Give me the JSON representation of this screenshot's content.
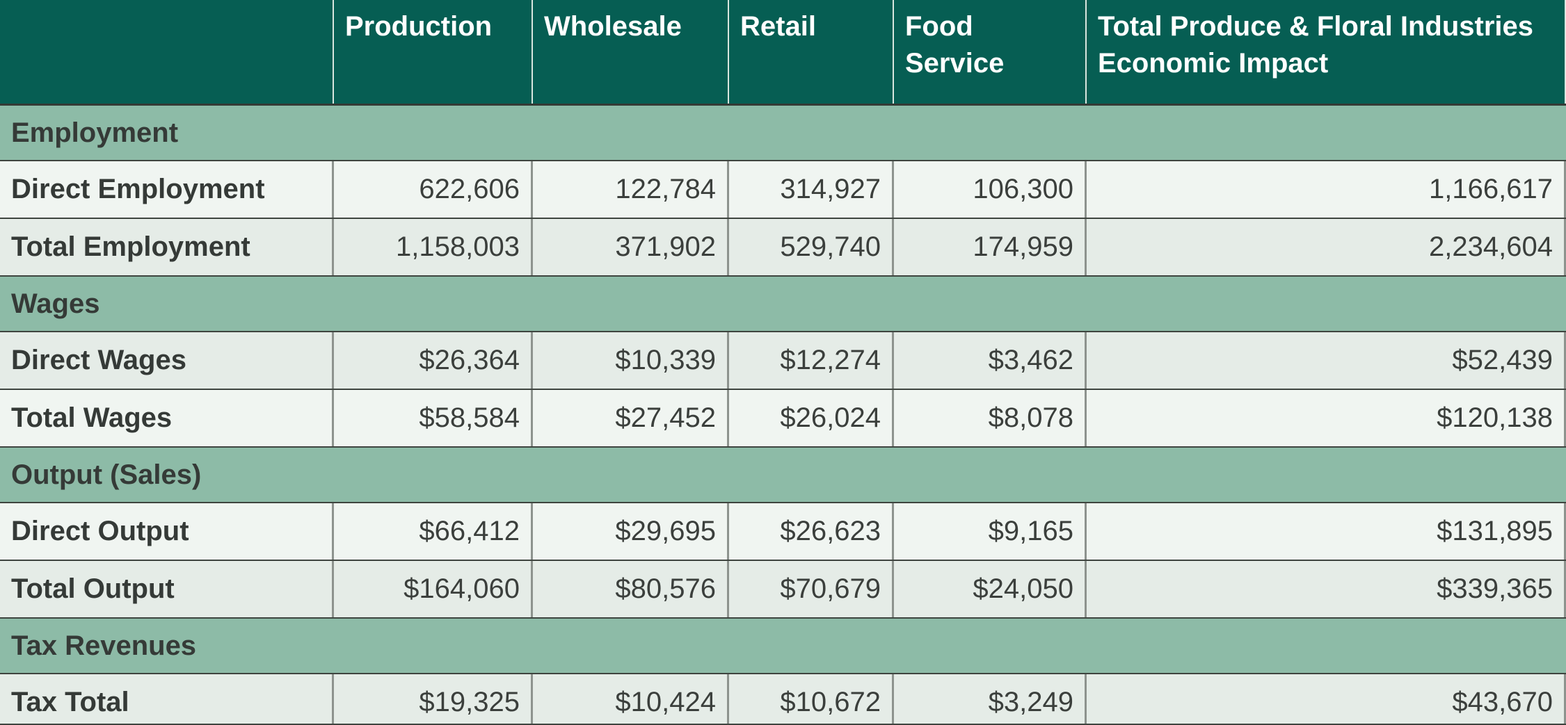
{
  "table": {
    "columns": [
      "",
      "Production",
      "Wholesale",
      "Retail",
      "Food Service",
      "Total Produce & Floral Industries Economic Impact"
    ],
    "sections": [
      {
        "label": "Employment",
        "rows": [
          {
            "label": "Direct Employment",
            "shade": "light",
            "values": [
              "622,606",
              "122,784",
              "314,927",
              "106,300",
              "1,166,617"
            ]
          },
          {
            "label": "Total Employment",
            "shade": "dark",
            "values": [
              "1,158,003",
              "371,902",
              "529,740",
              "174,959",
              "2,234,604"
            ]
          }
        ]
      },
      {
        "label": "Wages",
        "rows": [
          {
            "label": "Direct Wages",
            "shade": "dark",
            "values": [
              "$26,364",
              "$10,339",
              "$12,274",
              "$3,462",
              "$52,439"
            ]
          },
          {
            "label": "Total Wages",
            "shade": "light",
            "values": [
              "$58,584",
              "$27,452",
              "$26,024",
              "$8,078",
              "$120,138"
            ]
          }
        ]
      },
      {
        "label": "Output (Sales)",
        "rows": [
          {
            "label": "Direct Output",
            "shade": "light",
            "values": [
              "$66,412",
              "$29,695",
              "$26,623",
              "$9,165",
              "$131,895"
            ]
          },
          {
            "label": "Total Output",
            "shade": "dark",
            "values": [
              "$164,060",
              "$80,576",
              "$70,679",
              "$24,050",
              "$339,365"
            ]
          }
        ]
      },
      {
        "label": "Tax Revenues",
        "rows": [
          {
            "label": "Tax Total",
            "shade": "dark",
            "values": [
              "$19,325",
              "$10,424",
              "$10,672",
              "$3,249",
              "$43,670"
            ]
          }
        ]
      }
    ],
    "colors": {
      "header_bg": "#065e53",
      "header_text": "#ffffff",
      "section_bg": "#8dbba7",
      "row_light_bg": "#f0f5f1",
      "row_dark_bg": "#e5ece7",
      "border_dark": "#3e443f",
      "border_gray": "#8d938e",
      "header_divider": "#d9e6df",
      "text": "#3b3f3c"
    }
  },
  "chart_data": {
    "type": "table",
    "columns": [
      "Production",
      "Wholesale",
      "Retail",
      "Food Service",
      "Total Produce & Floral Industries Economic Impact"
    ],
    "rows": [
      {
        "section": "Employment",
        "label": "Direct Employment",
        "values": [
          622606,
          122784,
          314927,
          106300,
          1166617
        ],
        "unit": "jobs"
      },
      {
        "section": "Employment",
        "label": "Total Employment",
        "values": [
          1158003,
          371902,
          529740,
          174959,
          2234604
        ],
        "unit": "jobs"
      },
      {
        "section": "Wages",
        "label": "Direct Wages",
        "values": [
          26364,
          10339,
          12274,
          3462,
          52439
        ],
        "unit": "USD"
      },
      {
        "section": "Wages",
        "label": "Total Wages",
        "values": [
          58584,
          27452,
          26024,
          8078,
          120138
        ],
        "unit": "USD"
      },
      {
        "section": "Output (Sales)",
        "label": "Direct Output",
        "values": [
          66412,
          29695,
          26623,
          9165,
          131895
        ],
        "unit": "USD"
      },
      {
        "section": "Output (Sales)",
        "label": "Total Output",
        "values": [
          164060,
          80576,
          70679,
          24050,
          339365
        ],
        "unit": "USD"
      },
      {
        "section": "Tax Revenues",
        "label": "Tax Total",
        "values": [
          19325,
          10424,
          10672,
          3249,
          43670
        ],
        "unit": "USD"
      }
    ]
  }
}
